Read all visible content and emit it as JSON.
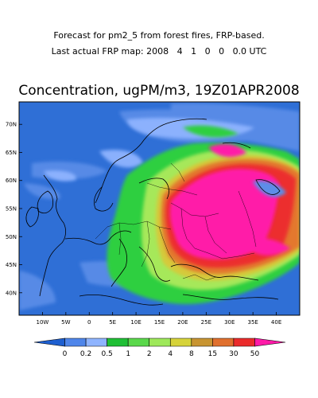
{
  "header": {
    "line1": "Forecast for pm2_5 from forest fires, FRP-based.",
    "line2": "Last actual FRP map: 2008   4   1   0   0   0.0 UTC"
  },
  "map": {
    "title": "Concentration, ugPM/m3, 19Z01APR2008",
    "lat_labels": [
      "70N",
      "65N",
      "60N",
      "55N",
      "50N",
      "45N",
      "40N"
    ],
    "lon_labels": [
      "10W",
      "5W",
      "0",
      "5E",
      "10E",
      "15E",
      "20E",
      "25E",
      "30E",
      "35E",
      "40E"
    ],
    "lon_range": [
      -15,
      45
    ],
    "lat_range": [
      36,
      74
    ],
    "background_color": "#2f6fd6"
  },
  "colorbar": {
    "labels": [
      "0",
      "0.2",
      "0.5",
      "1",
      "2",
      "4",
      "8",
      "15",
      "30",
      "50"
    ],
    "colors": [
      "#1e5fd0",
      "#4f86ea",
      "#8fb4ff",
      "#1fbf35",
      "#5ad84b",
      "#9ee85a",
      "#d6d33a",
      "#c89532",
      "#e0702e",
      "#ea2b2b",
      "#ff1aa8"
    ]
  }
}
